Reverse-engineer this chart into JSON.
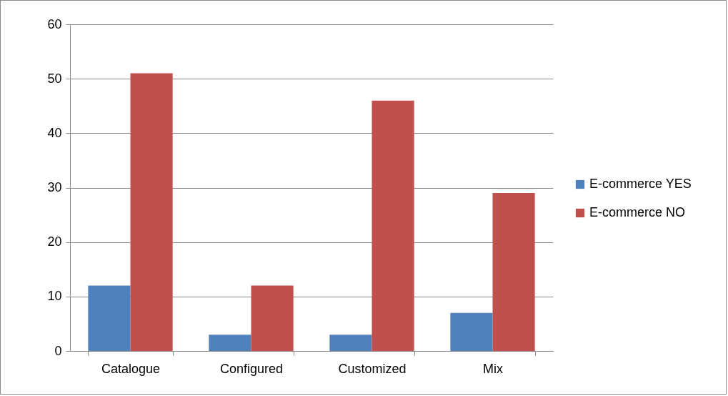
{
  "chart_data": {
    "type": "bar",
    "categories": [
      "Catalogue",
      "Configured",
      "Customized",
      "Mix"
    ],
    "series": [
      {
        "name": "E-commerce YES",
        "color": "#4f81bd",
        "values": [
          12,
          3,
          3,
          7
        ]
      },
      {
        "name": "E-commerce NO",
        "color": "#c0504d",
        "values": [
          51,
          12,
          46,
          29
        ]
      }
    ],
    "ylim": [
      0,
      60
    ],
    "yticks": [
      0,
      10,
      20,
      30,
      40,
      50,
      60
    ],
    "grid": "y",
    "legend": "right"
  }
}
